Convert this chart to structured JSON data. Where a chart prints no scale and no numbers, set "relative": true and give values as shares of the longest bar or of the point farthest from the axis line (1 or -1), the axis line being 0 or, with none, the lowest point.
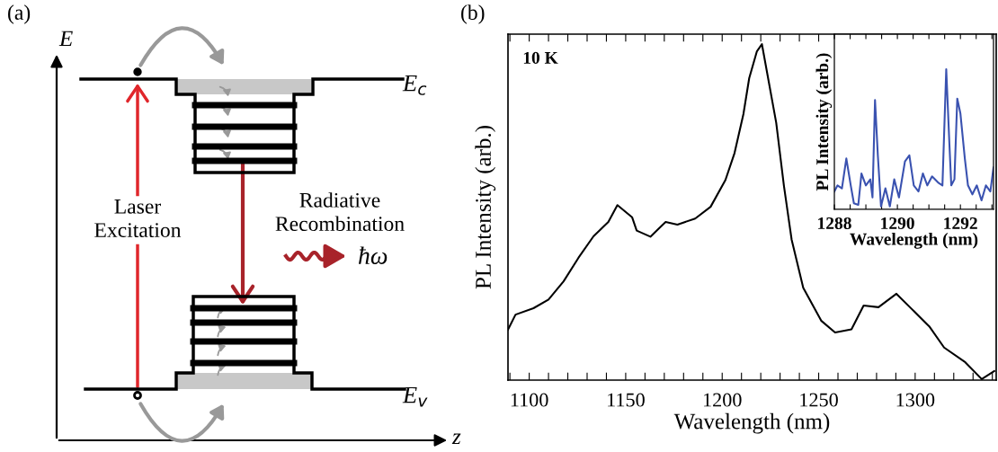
{
  "chart_data": [
    {
      "type": "other",
      "title": "(a)",
      "annotations": [
        "E",
        "E$_{c}$",
        "E$_{v}$",
        "z",
        "Laser\nExcitation",
        "Radiative\nRecombination",
        "ħω"
      ]
    },
    {
      "type": "line",
      "title": "(b)",
      "annotations": [
        "10 K"
      ],
      "xlabel": "Wavelength (nm)",
      "ylabel": "PL Intensity (arb.)",
      "relative": true,
      "xlim": [
        1089,
        1342
      ],
      "xticks": [
        {
          "value": 1090,
          "label": null
        },
        1100,
        {
          "value": 1110,
          "label": null
        },
        {
          "value": 1120,
          "label": null
        },
        {
          "value": 1130,
          "label": null
        },
        {
          "value": 1140,
          "label": null
        },
        1150,
        {
          "value": 1160,
          "label": null
        },
        {
          "value": 1170,
          "label": null
        },
        {
          "value": 1180,
          "label": null
        },
        {
          "value": 1190,
          "label": null
        },
        1200,
        {
          "value": 1210,
          "label": null
        },
        {
          "value": 1220,
          "label": null
        },
        {
          "value": 1230,
          "label": null
        },
        {
          "value": 1240,
          "label": null
        },
        1250,
        {
          "value": 1260,
          "label": null
        },
        {
          "value": 1270,
          "label": null
        },
        {
          "value": 1280,
          "label": null
        },
        {
          "value": 1290,
          "label": null
        },
        1300,
        {
          "value": 1310,
          "label": null
        },
        {
          "value": 1320,
          "label": null
        },
        {
          "value": 1330,
          "label": null
        },
        {
          "value": 1340,
          "label": null
        }
      ],
      "series": [
        {
          "color": "#000000",
          "x": [
            1089.0,
            1092.9,
            1102.2,
            1110.0,
            1117.8,
            1125.5,
            1133.3,
            1141.0,
            1145.7,
            1153.3,
            1155.7,
            1162.8,
            1170.7,
            1176.8,
            1186.0,
            1194.0,
            1201.7,
            1206.4,
            1211.0,
            1214.0,
            1218.0,
            1220.6,
            1228.0,
            1232.0,
            1236.0,
            1242.0,
            1251.3,
            1258.5,
            1267.0,
            1273.3,
            1281.0,
            1290.3,
            1298.0,
            1307.3,
            1315.0,
            1326.0,
            1334.5,
            1341.0
          ],
          "values": [
            0.15,
            0.195,
            0.214,
            0.24,
            0.294,
            0.364,
            0.428,
            0.471,
            0.521,
            0.485,
            0.445,
            0.427,
            0.471,
            0.463,
            0.481,
            0.516,
            0.596,
            0.676,
            0.792,
            0.899,
            0.979,
            1.0,
            0.766,
            0.578,
            0.418,
            0.275,
            0.177,
            0.142,
            0.151,
            0.222,
            0.217,
            0.257,
            0.213,
            0.16,
            0.097,
            0.053,
            0.003,
            0.027
          ]
        }
      ]
    },
    {
      "type": "line",
      "xlabel": "Wavelength (nm)",
      "ylabel": "PL Intensity (arb.)",
      "relative": true,
      "xlim": [
        1288,
        1293.05
      ],
      "xticks": [
        1288,
        {
          "value": 1288.5,
          "label": null
        },
        {
          "value": 1289,
          "label": null
        },
        {
          "value": 1289.5,
          "label": null
        },
        1290,
        {
          "value": 1290.5,
          "label": null
        },
        {
          "value": 1291,
          "label": null
        },
        {
          "value": 1291.5,
          "label": null
        },
        1292,
        {
          "value": 1292.5,
          "label": null
        },
        {
          "value": 1293,
          "label": null
        }
      ],
      "series": [
        {
          "color": "#3a52b0",
          "x": [
            1288.0,
            1288.1,
            1288.24,
            1288.38,
            1288.52,
            1288.62,
            1288.76,
            1288.86,
            1289.0,
            1289.14,
            1289.21,
            1289.29,
            1289.38,
            1289.48,
            1289.62,
            1289.76,
            1289.9,
            1290.05,
            1290.24,
            1290.38,
            1290.52,
            1290.67,
            1290.81,
            1290.95,
            1291.1,
            1291.29,
            1291.43,
            1291.55,
            1291.65,
            1291.71,
            1291.81,
            1291.9,
            1292.0,
            1292.14,
            1292.24,
            1292.38,
            1292.52,
            1292.67,
            1292.81,
            1292.95,
            1293.05
          ],
          "values": [
            0.128,
            0.171,
            0.15,
            0.363,
            0.171,
            0.043,
            0.032,
            0.256,
            0.171,
            0.214,
            0.085,
            0.78,
            0.385,
            0.021,
            0.15,
            0.021,
            0.214,
            0.085,
            0.342,
            0.385,
            0.171,
            0.128,
            0.256,
            0.171,
            0.235,
            0.192,
            0.171,
            1.0,
            0.47,
            0.171,
            0.214,
            0.79,
            0.684,
            0.363,
            0.171,
            0.107,
            0.171,
            0.064,
            0.171,
            0.128,
            0.299
          ]
        }
      ]
    }
  ]
}
